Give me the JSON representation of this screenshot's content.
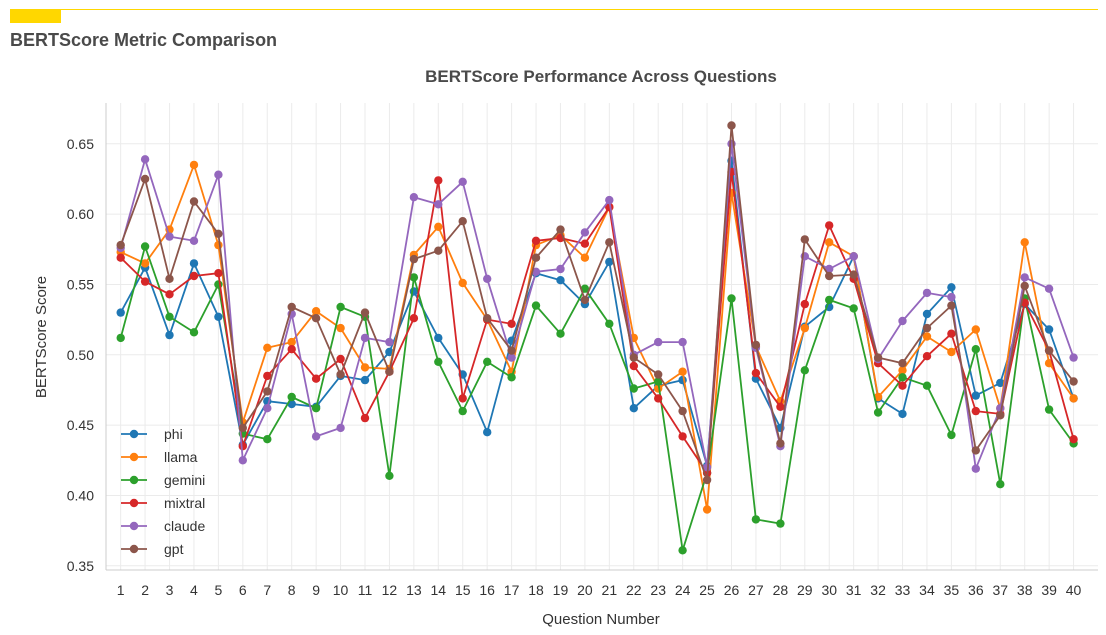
{
  "header": {
    "title": "BERTScore Metric Comparison",
    "accent_color": "#FFD700"
  },
  "chart_data": {
    "type": "line",
    "title": "BERTScore Performance Across Questions",
    "xlabel": "Question Number",
    "ylabel": "BERTScore Score",
    "x": [
      1,
      2,
      3,
      4,
      5,
      6,
      7,
      8,
      9,
      10,
      11,
      12,
      13,
      14,
      15,
      16,
      17,
      18,
      19,
      20,
      21,
      22,
      23,
      24,
      25,
      26,
      27,
      28,
      29,
      30,
      31,
      32,
      33,
      34,
      35,
      36,
      37,
      38,
      39,
      40
    ],
    "x_ticks": [
      "1",
      "2",
      "3",
      "4",
      "5",
      "6",
      "7",
      "8",
      "9",
      "10",
      "11",
      "12",
      "13",
      "14",
      "15",
      "16",
      "17",
      "18",
      "19",
      "20",
      "21",
      "22",
      "23",
      "24",
      "25",
      "26",
      "27",
      "28",
      "29",
      "30",
      "31",
      "32",
      "33",
      "34",
      "35",
      "36",
      "37",
      "38",
      "39",
      "40"
    ],
    "xlim": [
      0.4,
      41.0
    ],
    "ylim": [
      0.347,
      0.679
    ],
    "y_ticks": [
      "0.35",
      "0.40",
      "0.45",
      "0.50",
      "0.55",
      "0.60",
      "0.65"
    ],
    "grid": true,
    "legend_position": "lower-left",
    "series": [
      {
        "name": "phi",
        "color": "#1f77b4",
        "values": [
          0.53,
          0.562,
          0.514,
          0.565,
          0.527,
          0.436,
          0.467,
          0.465,
          0.463,
          0.485,
          0.482,
          0.502,
          0.545,
          0.512,
          0.486,
          0.445,
          0.51,
          0.558,
          0.553,
          0.536,
          0.566,
          0.462,
          0.478,
          0.482,
          0.421,
          0.638,
          0.483,
          0.448,
          0.52,
          0.534,
          0.57,
          0.469,
          0.458,
          0.529,
          0.548,
          0.471,
          0.48,
          0.536,
          0.518,
          0.469
        ]
      },
      {
        "name": "llama",
        "color": "#ff7f0e",
        "values": [
          0.573,
          0.565,
          0.589,
          0.635,
          0.578,
          0.452,
          0.505,
          0.509,
          0.531,
          0.519,
          0.491,
          0.49,
          0.571,
          0.591,
          0.551,
          0.525,
          0.488,
          0.578,
          0.585,
          0.569,
          0.605,
          0.512,
          0.476,
          0.488,
          0.39,
          0.615,
          0.506,
          0.467,
          0.519,
          0.58,
          0.57,
          0.47,
          0.489,
          0.513,
          0.502,
          0.518,
          0.462,
          0.58,
          0.494,
          0.469
        ]
      },
      {
        "name": "gemini",
        "color": "#2ca02c",
        "values": [
          0.512,
          0.577,
          0.527,
          0.516,
          0.55,
          0.444,
          0.44,
          0.47,
          0.462,
          0.534,
          0.527,
          0.414,
          0.555,
          0.495,
          0.46,
          0.495,
          0.484,
          0.535,
          0.515,
          0.547,
          0.522,
          0.476,
          0.481,
          0.361,
          0.416,
          0.54,
          0.383,
          0.38,
          0.489,
          0.539,
          0.533,
          0.459,
          0.484,
          0.478,
          0.443,
          0.504,
          0.408,
          0.54,
          0.461,
          0.437
        ]
      },
      {
        "name": "mixtral",
        "color": "#d62728",
        "values": [
          0.569,
          0.552,
          0.543,
          0.556,
          0.558,
          0.435,
          0.485,
          0.504,
          0.483,
          0.497,
          0.455,
          0.488,
          0.526,
          0.624,
          0.469,
          0.525,
          0.522,
          0.581,
          0.583,
          0.579,
          0.605,
          0.492,
          0.469,
          0.442,
          0.416,
          0.63,
          0.487,
          0.463,
          0.536,
          0.592,
          0.554,
          0.494,
          0.478,
          0.499,
          0.515,
          0.46,
          0.458,
          0.537,
          0.503,
          0.44
        ]
      },
      {
        "name": "claude",
        "color": "#9467bd",
        "values": [
          0.576,
          0.639,
          0.584,
          0.581,
          0.628,
          0.425,
          0.462,
          0.529,
          0.442,
          0.448,
          0.512,
          0.509,
          0.612,
          0.607,
          0.623,
          0.554,
          0.498,
          0.559,
          0.561,
          0.587,
          0.61,
          0.5,
          0.509,
          0.509,
          0.42,
          0.65,
          0.505,
          0.435,
          0.57,
          0.561,
          0.57,
          0.497,
          0.524,
          0.544,
          0.541,
          0.419,
          0.462,
          0.555,
          0.547,
          0.498
        ]
      },
      {
        "name": "gpt",
        "color": "#8c564b",
        "values": [
          0.578,
          0.625,
          0.554,
          0.609,
          0.586,
          0.448,
          0.474,
          0.534,
          0.526,
          0.486,
          0.53,
          0.488,
          0.568,
          0.574,
          0.595,
          0.526,
          0.503,
          0.569,
          0.589,
          0.539,
          0.58,
          0.498,
          0.486,
          0.46,
          0.411,
          0.663,
          0.507,
          0.437,
          0.582,
          0.556,
          0.557,
          0.498,
          0.494,
          0.519,
          0.535,
          0.432,
          0.457,
          0.549,
          0.503,
          0.481
        ]
      }
    ]
  }
}
